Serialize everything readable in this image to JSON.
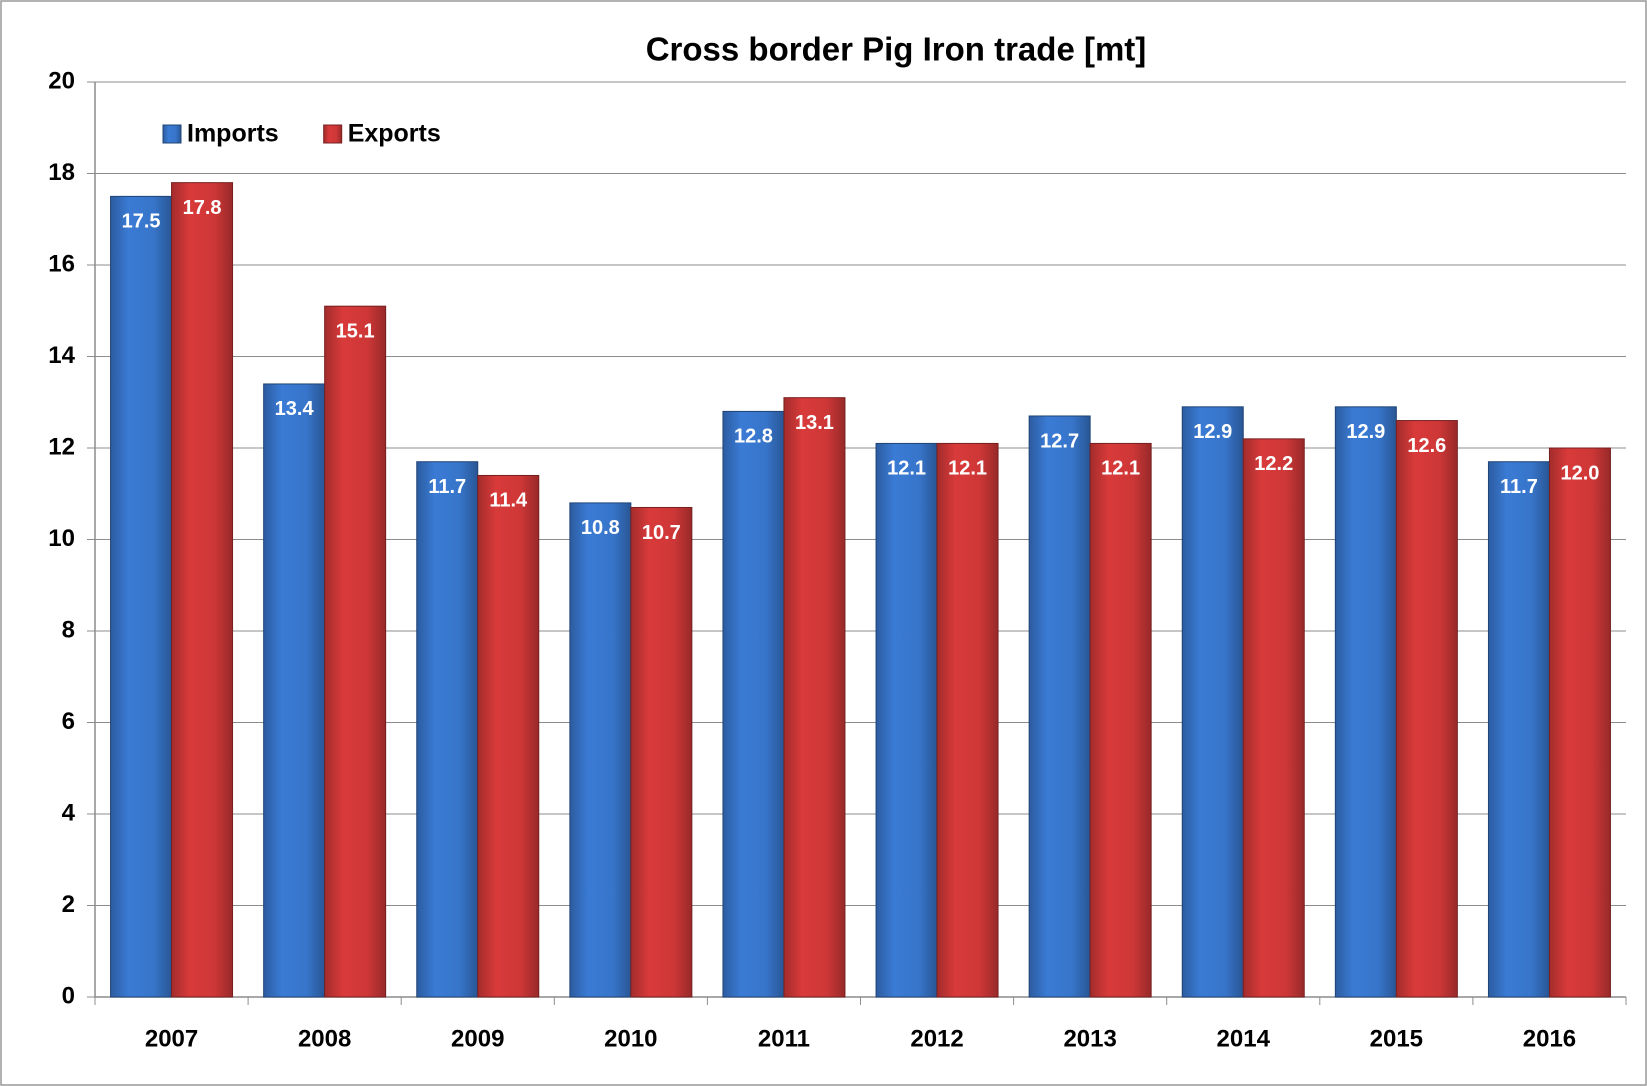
{
  "chart_data": {
    "type": "bar",
    "title": "Cross border Pig Iron trade [mt]",
    "categories": [
      "2007",
      "2008",
      "2009",
      "2010",
      "2011",
      "2012",
      "2013",
      "2014",
      "2015",
      "2016"
    ],
    "series": [
      {
        "name": "Imports",
        "color": "#3a7bd5",
        "values": [
          17.5,
          13.4,
          11.7,
          10.8,
          12.8,
          12.1,
          12.7,
          12.9,
          12.9,
          11.7
        ]
      },
      {
        "name": "Exports",
        "color": "#d93a3a",
        "values": [
          17.8,
          15.1,
          11.4,
          10.7,
          13.1,
          12.1,
          12.1,
          12.2,
          12.6,
          12.0
        ],
        "value_labels": [
          "17.8",
          "15.1",
          "11.4",
          "10.7",
          "13.1",
          "12.1",
          "12.1",
          "12.2",
          "12.6",
          "12.0"
        ]
      }
    ],
    "ylim": [
      0,
      20
    ],
    "yticks": [
      0,
      2,
      4,
      6,
      8,
      10,
      12,
      14,
      16,
      18,
      20
    ],
    "grid": true,
    "legend": "top-left"
  }
}
